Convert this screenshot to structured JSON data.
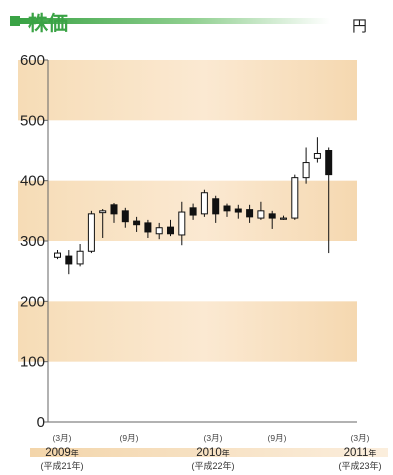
{
  "chart_data": {
    "type": "candlestick",
    "title": "株価",
    "unit": "円",
    "ylim": [
      0,
      600
    ],
    "y_ticks": [
      "0",
      "100",
      "200",
      "300",
      "400",
      "500",
      "600"
    ],
    "x_labels": [
      {
        "month": "(3月)",
        "year": "2009",
        "nen": "年",
        "era": "(平成21年)"
      },
      {
        "month": "(9月)"
      },
      {
        "month": "(3月)",
        "year": "2010",
        "nen": "年",
        "era": "(平成22年)"
      },
      {
        "month": "(9月)"
      },
      {
        "month": "(3月)",
        "year": "2011",
        "nen": "年",
        "era": "(平成23年)"
      }
    ],
    "candles": [
      {
        "o": 273,
        "c": 280,
        "h": 285,
        "l": 270
      },
      {
        "o": 275,
        "c": 262,
        "h": 285,
        "l": 245
      },
      {
        "o": 262,
        "c": 283,
        "h": 295,
        "l": 258
      },
      {
        "o": 283,
        "c": 345,
        "h": 350,
        "l": 280
      },
      {
        "o": 347,
        "c": 350,
        "h": 353,
        "l": 305
      },
      {
        "o": 360,
        "c": 345,
        "h": 363,
        "l": 330
      },
      {
        "o": 350,
        "c": 332,
        "h": 355,
        "l": 322
      },
      {
        "o": 333,
        "c": 327,
        "h": 340,
        "l": 315
      },
      {
        "o": 330,
        "c": 315,
        "h": 335,
        "l": 305
      },
      {
        "o": 312,
        "c": 322,
        "h": 330,
        "l": 303
      },
      {
        "o": 323,
        "c": 312,
        "h": 335,
        "l": 308
      },
      {
        "o": 310,
        "c": 348,
        "h": 365,
        "l": 293
      },
      {
        "o": 355,
        "c": 343,
        "h": 362,
        "l": 335
      },
      {
        "o": 345,
        "c": 380,
        "h": 385,
        "l": 340
      },
      {
        "o": 370,
        "c": 345,
        "h": 375,
        "l": 330
      },
      {
        "o": 358,
        "c": 350,
        "h": 362,
        "l": 340
      },
      {
        "o": 353,
        "c": 348,
        "h": 360,
        "l": 337
      },
      {
        "o": 352,
        "c": 340,
        "h": 360,
        "l": 330
      },
      {
        "o": 338,
        "c": 350,
        "h": 365,
        "l": 335
      },
      {
        "o": 345,
        "c": 338,
        "h": 350,
        "l": 320
      },
      {
        "o": 338,
        "c": 338,
        "h": 342,
        "l": 335
      },
      {
        "o": 338,
        "c": 405,
        "h": 410,
        "l": 335
      },
      {
        "o": 405,
        "c": 430,
        "h": 455,
        "l": 395
      },
      {
        "o": 437,
        "c": 445,
        "h": 472,
        "l": 430
      },
      {
        "o": 450,
        "c": 410,
        "h": 455,
        "l": 280
      }
    ]
  }
}
